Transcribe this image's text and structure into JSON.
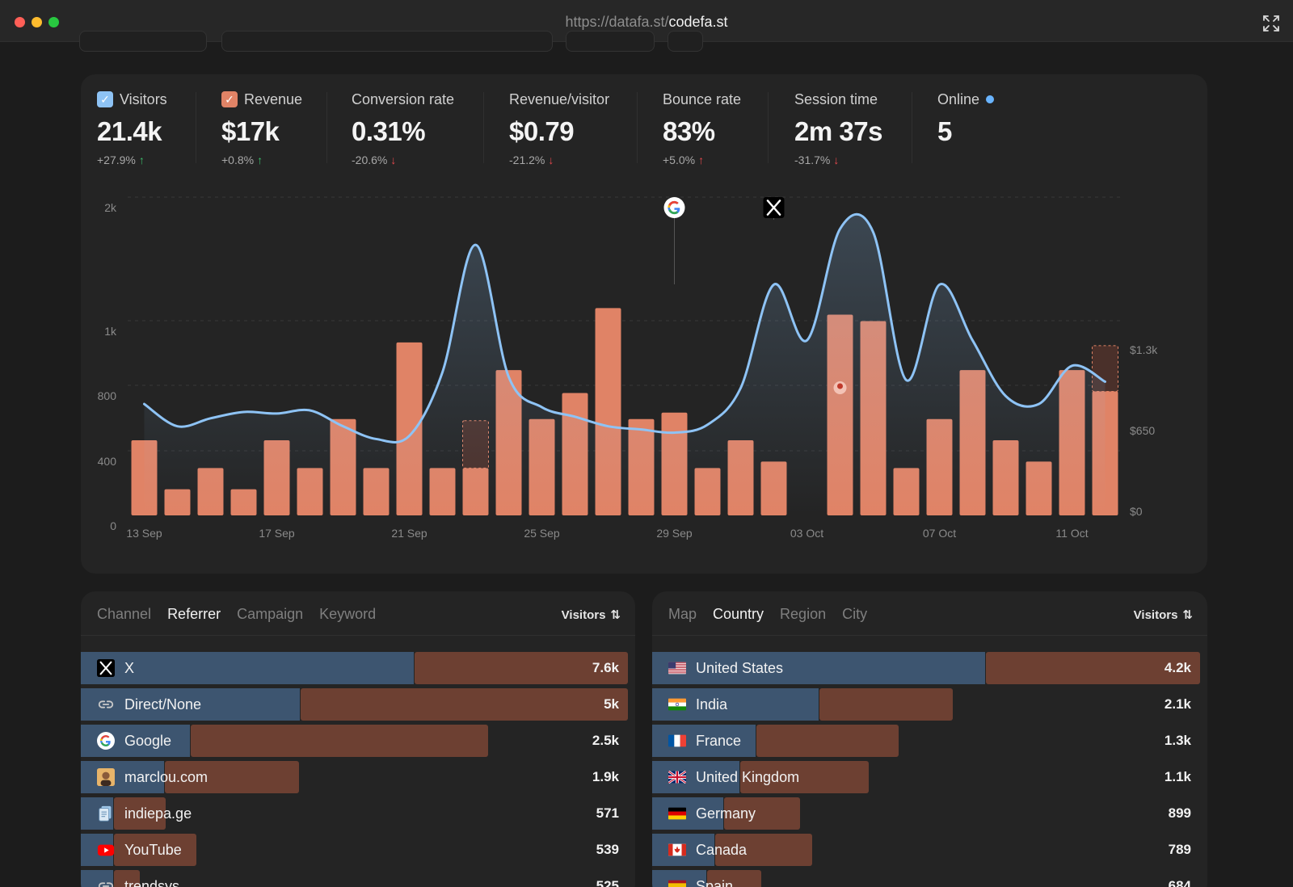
{
  "window": {
    "url_prefix": "https://datafa.st/",
    "url_host": "codefa.st"
  },
  "colors": {
    "visitors": "#8ec3f5",
    "revenue": "#e08366",
    "online": "#69b4ff",
    "up": "#3bbf6b",
    "down": "#e5484d"
  },
  "kpis": [
    {
      "label": "Visitors",
      "value": "21.4k",
      "delta": "+27.9%",
      "trend": "up",
      "checkbox": "visitors"
    },
    {
      "label": "Revenue",
      "value": "$17k",
      "delta": "+0.8%",
      "trend": "up",
      "checkbox": "revenue"
    },
    {
      "label": "Conversion rate",
      "value": "0.31%",
      "delta": "-20.6%",
      "trend": "down"
    },
    {
      "label": "Revenue/visitor",
      "value": "$0.79",
      "delta": "-21.2%",
      "trend": "down"
    },
    {
      "label": "Bounce rate",
      "value": "83%",
      "delta": "+5.0%",
      "trend": "up-red"
    },
    {
      "label": "Session time",
      "value": "2m 37s",
      "delta": "-31.7%",
      "trend": "down"
    },
    {
      "label": "Online",
      "value": "5",
      "delta": "",
      "trend": "none"
    }
  ],
  "chart_data": {
    "type": "bar",
    "x_ticks": [
      "13 Sep",
      "17 Sep",
      "21 Sep",
      "25 Sep",
      "29 Sep",
      "03 Oct",
      "07 Oct",
      "11 Oct"
    ],
    "left_axis_ticks": [
      "2k",
      "1k",
      "800",
      "400",
      "0"
    ],
    "right_axis_ticks": [
      "$1.3k",
      "$650",
      "$0"
    ],
    "categories": [
      "13 Sep",
      "14 Sep",
      "15 Sep",
      "16 Sep",
      "17 Sep",
      "18 Sep",
      "19 Sep",
      "20 Sep",
      "21 Sep",
      "22 Sep",
      "23 Sep",
      "24 Sep",
      "25 Sep",
      "26 Sep",
      "27 Sep",
      "28 Sep",
      "29 Sep",
      "30 Sep",
      "01 Oct",
      "02 Oct",
      "03 Oct",
      "04 Oct",
      "05 Oct",
      "06 Oct",
      "07 Oct",
      "08 Oct",
      "09 Oct",
      "10 Oct",
      "11 Oct",
      "12 Oct"
    ],
    "series": [
      {
        "name": "Revenue",
        "axis": "right",
        "values": [
          460,
          160,
          290,
          160,
          460,
          290,
          590,
          290,
          1060,
          290,
          290,
          890,
          590,
          750,
          1270,
          590,
          630,
          290,
          460,
          330,
          0,
          1230,
          1190,
          290,
          590,
          890,
          460,
          330,
          890,
          760
        ]
      },
      {
        "name": "Visitors",
        "axis": "left",
        "values": [
          700,
          560,
          610,
          650,
          640,
          660,
          560,
          480,
          500,
          900,
          1700,
          870,
          680,
          620,
          560,
          540,
          520,
          570,
          800,
          1450,
          1100,
          1800,
          1780,
          850,
          1450,
          1100,
          750,
          700,
          940,
          840
        ]
      }
    ],
    "pending_revenue": [
      {
        "category": "23 Sep",
        "value": 290
      },
      {
        "category": "12 Oct",
        "value": 280
      }
    ],
    "ylim_left": [
      0,
      2000
    ],
    "ylim_right": [
      0,
      1950
    ],
    "annotations": [
      {
        "category": "29 Sep",
        "icon": "google"
      },
      {
        "category": "02 Oct",
        "icon": "x"
      },
      {
        "category": "04 Oct",
        "icon": "avatar"
      }
    ]
  },
  "referrers": {
    "tabs": [
      "Channel",
      "Referrer",
      "Campaign",
      "Keyword"
    ],
    "active_tab": 1,
    "sort_label": "Visitors",
    "rows": [
      {
        "icon": "x",
        "label": "X",
        "value": "7.6k",
        "visitors": 7600,
        "revenue": 1.0
      },
      {
        "icon": "link",
        "label": "Direct/None",
        "value": "5k",
        "visitors": 5000,
        "revenue": 1.0
      },
      {
        "icon": "google",
        "label": "Google",
        "value": "2.5k",
        "visitors": 2500,
        "revenue": 0.68
      },
      {
        "icon": "avatar",
        "label": "marclou.com",
        "value": "1.9k",
        "visitors": 1900,
        "revenue": 0.29
      },
      {
        "icon": "docs",
        "label": "indiepa.ge",
        "value": "571",
        "visitors": 571,
        "revenue": 0.1
      },
      {
        "icon": "youtube",
        "label": "YouTube",
        "value": "539",
        "visitors": 539,
        "revenue": 0.16
      },
      {
        "icon": "link",
        "label": "trendsys",
        "value": "525",
        "visitors": 525,
        "revenue": 0.05
      }
    ]
  },
  "countries": {
    "tabs": [
      "Map",
      "Country",
      "Region",
      "City"
    ],
    "active_tab": 1,
    "sort_label": "Visitors",
    "rows": [
      {
        "flag": "us",
        "label": "United States",
        "value": "4.2k",
        "visitors": 4200,
        "revenue": 1.0
      },
      {
        "flag": "in",
        "label": "India",
        "value": "2.1k",
        "visitors": 2100,
        "revenue": 0.35
      },
      {
        "flag": "fr",
        "label": "France",
        "value": "1.3k",
        "visitors": 1300,
        "revenue": 0.32
      },
      {
        "flag": "gb",
        "label": "United Kingdom",
        "value": "1.1k",
        "visitors": 1100,
        "revenue": 0.28
      },
      {
        "flag": "de",
        "label": "Germany",
        "value": "899",
        "visitors": 899,
        "revenue": 0.16
      },
      {
        "flag": "ca",
        "label": "Canada",
        "value": "789",
        "visitors": 789,
        "revenue": 0.2
      },
      {
        "flag": "es",
        "label": "Spain",
        "value": "684",
        "visitors": 684,
        "revenue": 0.11
      }
    ]
  }
}
